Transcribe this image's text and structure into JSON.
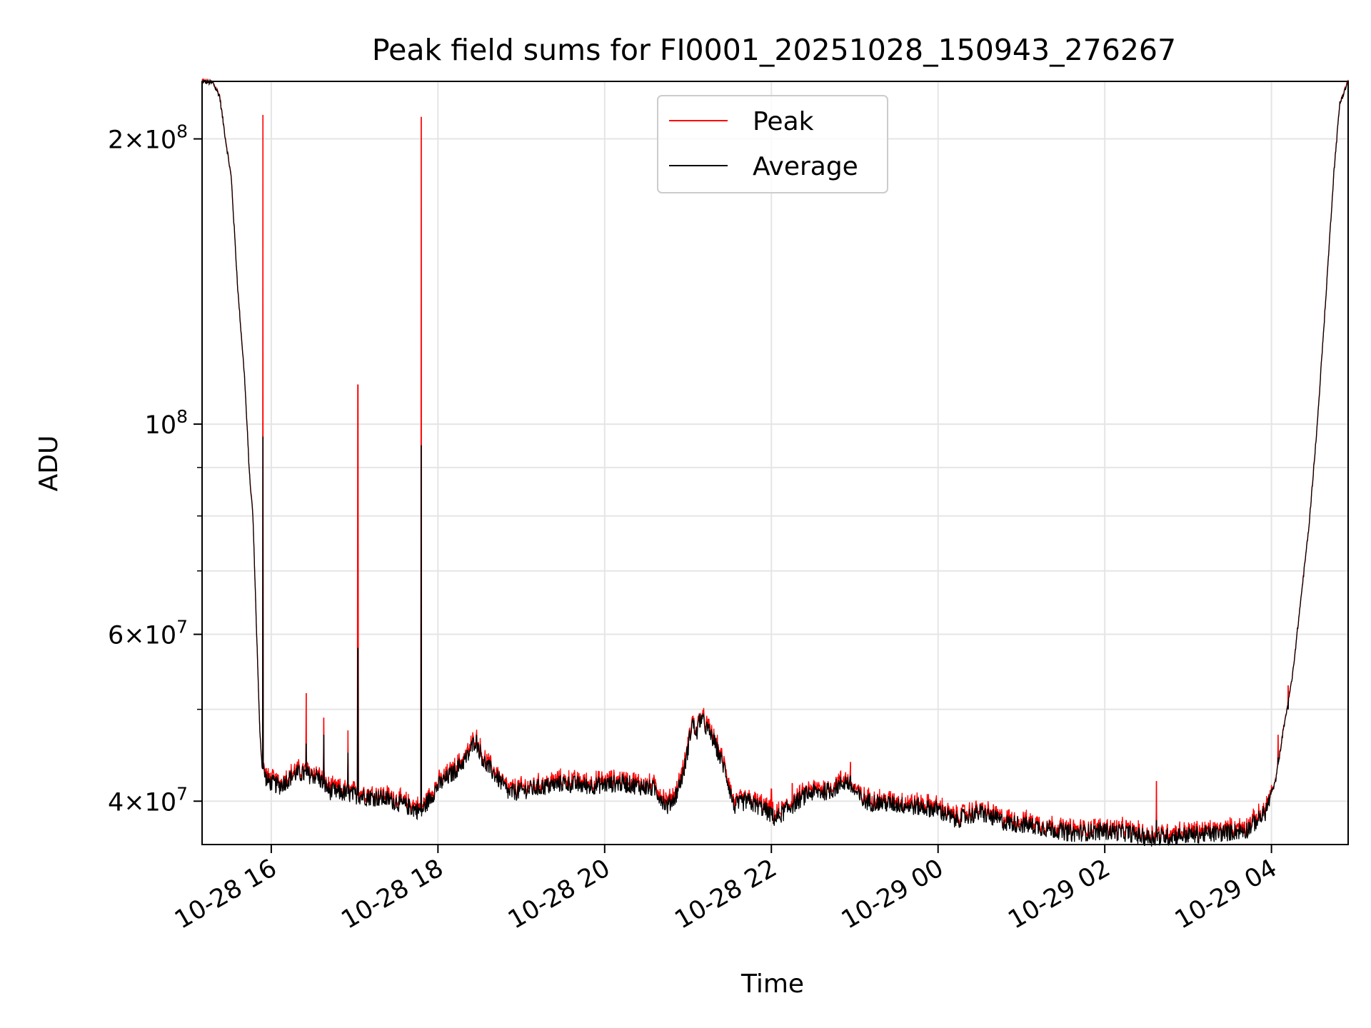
{
  "chart_data": {
    "type": "line",
    "title": "Peak field sums for FI0001_20251028_150943_276267",
    "xlabel": "Time",
    "ylabel": "ADU",
    "yscale": "log",
    "ylim": [
      36000000,
      230000000
    ],
    "xlim_hours": [
      15.17,
      28.92
    ],
    "grid": true,
    "legend_position": "upper center",
    "x_tick_labels": [
      {
        "hour": 16,
        "label": "10-28 16"
      },
      {
        "hour": 18,
        "label": "10-28 18"
      },
      {
        "hour": 20,
        "label": "10-28 20"
      },
      {
        "hour": 22,
        "label": "10-28 22"
      },
      {
        "hour": 24,
        "label": "10-29 00"
      },
      {
        "hour": 26,
        "label": "10-29 02"
      },
      {
        "hour": 28,
        "label": "10-29 04"
      }
    ],
    "y_tick_labels": [
      {
        "value": 40000000,
        "base": "4×10",
        "exp": "7"
      },
      {
        "value": 60000000,
        "base": "6×10",
        "exp": "7"
      },
      {
        "value": 100000000,
        "base": "10",
        "exp": "8"
      },
      {
        "value": 200000000,
        "base": "2×10",
        "exp": "8"
      }
    ],
    "y_minor_ticks": [
      50000000,
      70000000,
      80000000,
      90000000
    ],
    "series": [
      {
        "name": "Peak",
        "color": "#ff0000"
      },
      {
        "name": "Average",
        "color": "#000000"
      }
    ],
    "average_baseline": [
      [
        15.17,
        230000000
      ],
      [
        15.3,
        229000000
      ],
      [
        15.38,
        222000000
      ],
      [
        15.45,
        200000000
      ],
      [
        15.52,
        182000000
      ],
      [
        15.6,
        138000000
      ],
      [
        15.68,
        112000000
      ],
      [
        15.74,
        88000000
      ],
      [
        15.78,
        80000000
      ],
      [
        15.82,
        62000000
      ],
      [
        15.86,
        48000000
      ],
      [
        15.89,
        43500000
      ],
      [
        15.95,
        42000000
      ],
      [
        16.1,
        41500000
      ],
      [
        16.3,
        42800000
      ],
      [
        16.55,
        42500000
      ],
      [
        16.7,
        41000000
      ],
      [
        17.0,
        40600000
      ],
      [
        17.4,
        40200000
      ],
      [
        17.8,
        39000000
      ],
      [
        18.0,
        41500000
      ],
      [
        18.2,
        43000000
      ],
      [
        18.35,
        44500000
      ],
      [
        18.45,
        46500000
      ],
      [
        18.55,
        44000000
      ],
      [
        18.7,
        42500000
      ],
      [
        18.85,
        40800000
      ],
      [
        19.2,
        41300000
      ],
      [
        19.5,
        41800000
      ],
      [
        19.8,
        41500000
      ],
      [
        20.2,
        41800000
      ],
      [
        20.6,
        41200000
      ],
      [
        20.75,
        39500000
      ],
      [
        20.85,
        40500000
      ],
      [
        20.95,
        43000000
      ],
      [
        21.0,
        45500000
      ],
      [
        21.05,
        48500000
      ],
      [
        21.1,
        47000000
      ],
      [
        21.15,
        49000000
      ],
      [
        21.3,
        46500000
      ],
      [
        21.45,
        43000000
      ],
      [
        21.55,
        39500000
      ],
      [
        21.7,
        40000000
      ],
      [
        21.9,
        39300000
      ],
      [
        22.05,
        38300000
      ],
      [
        22.2,
        39300000
      ],
      [
        22.45,
        40800000
      ],
      [
        22.7,
        41000000
      ],
      [
        22.9,
        42000000
      ],
      [
        23.1,
        40000000
      ],
      [
        23.6,
        39600000
      ],
      [
        24.0,
        39200000
      ],
      [
        24.2,
        38200000
      ],
      [
        24.5,
        38900000
      ],
      [
        24.8,
        38000000
      ],
      [
        25.2,
        37600000
      ],
      [
        25.6,
        37000000
      ],
      [
        26.0,
        37200000
      ],
      [
        26.3,
        37000000
      ],
      [
        26.5,
        36600000
      ],
      [
        26.9,
        36800000
      ],
      [
        27.4,
        37000000
      ],
      [
        27.7,
        37300000
      ],
      [
        27.92,
        38800000
      ],
      [
        28.05,
        42000000
      ],
      [
        28.15,
        48000000
      ],
      [
        28.25,
        54000000
      ],
      [
        28.35,
        65000000
      ],
      [
        28.45,
        78000000
      ],
      [
        28.55,
        100000000
      ],
      [
        28.65,
        135000000
      ],
      [
        28.75,
        185000000
      ],
      [
        28.82,
        218000000
      ],
      [
        28.92,
        230000000
      ]
    ],
    "peak_spikes": [
      {
        "hour": 15.9,
        "peak": 212000000,
        "average": 97000000
      },
      {
        "hour": 16.42,
        "peak": 52000000,
        "average": 46000000
      },
      {
        "hour": 16.63,
        "peak": 49000000,
        "average": 47000000
      },
      {
        "hour": 16.92,
        "peak": 47500000,
        "average": 45000000
      },
      {
        "hour": 17.04,
        "peak": 110000000,
        "average": 58000000
      },
      {
        "hour": 17.8,
        "peak": 211000000,
        "average": 95000000
      },
      {
        "hour": 22.0,
        "peak": 41200000,
        "average": 39300000
      },
      {
        "hour": 22.25,
        "peak": 41800000,
        "average": 39800000
      },
      {
        "hour": 22.95,
        "peak": 44000000,
        "average": 42500000
      },
      {
        "hour": 26.62,
        "peak": 42000000,
        "average": 38200000
      },
      {
        "hour": 28.08,
        "peak": 47000000,
        "average": 44500000
      },
      {
        "hour": 28.2,
        "peak": 53000000,
        "average": 50000000
      }
    ]
  },
  "legend": {
    "peak_label": "Peak",
    "average_label": "Average"
  }
}
